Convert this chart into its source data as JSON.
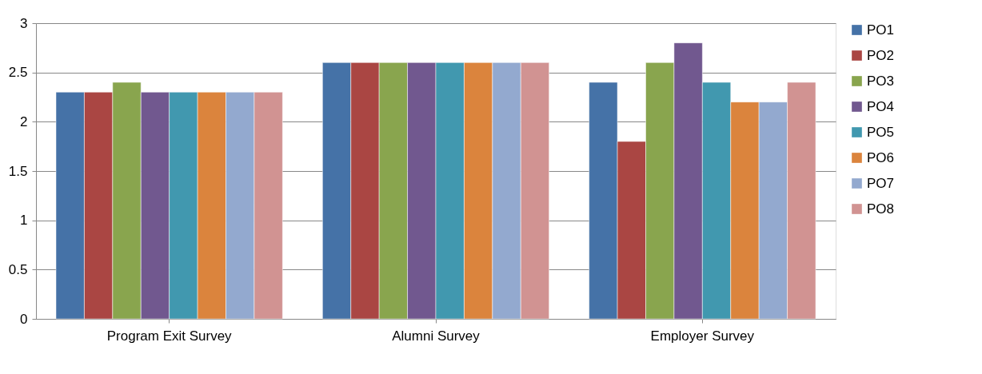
{
  "chart_data": {
    "type": "bar",
    "categories": [
      "Program Exit Survey",
      "Alumni Survey",
      "Employer Survey"
    ],
    "series": [
      {
        "name": "PO1",
        "color": "#4572a7",
        "values": [
          2.3,
          2.6,
          2.4
        ]
      },
      {
        "name": "PO2",
        "color": "#aa4643",
        "values": [
          2.3,
          2.6,
          1.8
        ]
      },
      {
        "name": "PO3",
        "color": "#89a54e",
        "values": [
          2.4,
          2.6,
          2.6
        ]
      },
      {
        "name": "PO4",
        "color": "#71588f",
        "values": [
          2.3,
          2.6,
          2.8
        ]
      },
      {
        "name": "PO5",
        "color": "#4198af",
        "values": [
          2.3,
          2.6,
          2.4
        ]
      },
      {
        "name": "PO6",
        "color": "#db843d",
        "values": [
          2.3,
          2.6,
          2.2
        ]
      },
      {
        "name": "PO7",
        "color": "#93a9cf",
        "values": [
          2.3,
          2.6,
          2.2
        ]
      },
      {
        "name": "PO8",
        "color": "#d19392",
        "values": [
          2.3,
          2.6,
          2.4
        ]
      }
    ],
    "ylim": [
      0,
      3
    ],
    "yticks": [
      0,
      0.5,
      1,
      1.5,
      2,
      2.5,
      3
    ],
    "grid": "y",
    "legend": "right"
  }
}
